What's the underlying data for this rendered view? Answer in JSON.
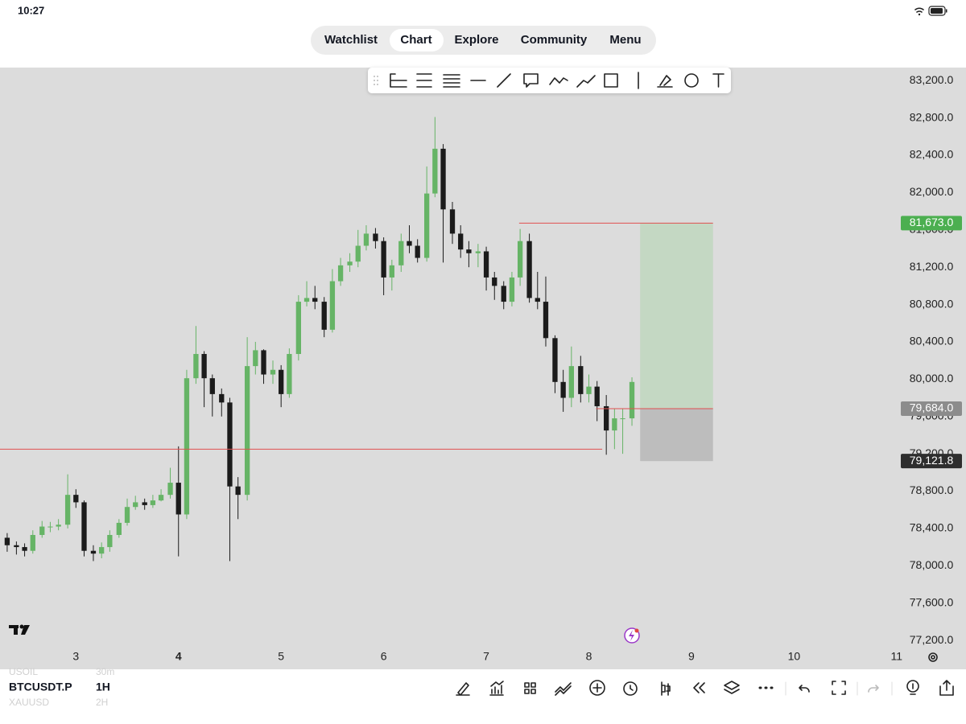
{
  "status_bar": {
    "time": "10:27"
  },
  "nav": {
    "tabs": [
      "Watchlist",
      "Chart",
      "Explore",
      "Community",
      "Menu"
    ]
  },
  "symbols": [
    {
      "symbol": "USOIL",
      "interval": "30m"
    },
    {
      "symbol": "BTCUSDT.P",
      "interval": "1H"
    },
    {
      "symbol": "XAUUSD",
      "interval": "2H"
    }
  ],
  "chart_data": {
    "type": "candlestick",
    "up_color": "#66b466",
    "down_color": "#1b1b1b",
    "x": [
      2.33,
      2.42,
      2.5,
      2.58,
      2.67,
      2.75,
      2.83,
      2.92,
      3,
      3.08,
      3.17,
      3.25,
      3.33,
      3.42,
      3.5,
      3.58,
      3.67,
      3.75,
      3.83,
      3.92,
      4,
      4.08,
      4.17,
      4.25,
      4.33,
      4.42,
      4.5,
      4.58,
      4.67,
      4.75,
      4.83,
      4.92,
      5,
      5.08,
      5.17,
      5.25,
      5.33,
      5.42,
      5.5,
      5.58,
      5.67,
      5.75,
      5.83,
      5.92,
      6,
      6.08,
      6.17,
      6.25,
      6.33,
      6.42,
      6.5,
      6.58,
      6.67,
      6.75,
      6.83,
      6.92,
      7,
      7.08,
      7.17,
      7.25,
      7.33,
      7.42,
      7.5,
      7.58,
      7.67,
      7.75,
      7.83,
      7.92,
      8,
      8.08,
      8.17,
      8.25,
      8.33,
      8.42
    ],
    "open": [
      78300,
      78220,
      78200,
      78160,
      78330,
      78420,
      78420,
      78440,
      78760,
      78680,
      78160,
      78130,
      78200,
      78330,
      78460,
      78630,
      78680,
      78650,
      78700,
      78760,
      78890,
      78550,
      80010,
      80270,
      80010,
      79840,
      79750,
      78850,
      78760,
      80140,
      80310,
      80050,
      80100,
      79840,
      80270,
      80830,
      80870,
      80830,
      80530,
      81050,
      81220,
      81260,
      81430,
      81560,
      81480,
      81090,
      81220,
      81480,
      81430,
      81300,
      81990,
      82470,
      81820,
      81560,
      81390,
      81350,
      81370,
      81090,
      81000,
      80830,
      81090,
      81480,
      80870,
      80830,
      80440,
      79970,
      79800,
      80140,
      79840,
      79920,
      79710,
      79450,
      79580,
      79580
    ],
    "high": [
      78350,
      78260,
      78240,
      78380,
      78480,
      78470,
      78500,
      78980,
      78820,
      78700,
      78220,
      78250,
      78380,
      78500,
      78720,
      78750,
      78720,
      78760,
      78820,
      79050,
      79280,
      80100,
      80570,
      80300,
      80050,
      79900,
      79800,
      78950,
      80450,
      80400,
      80320,
      80200,
      80150,
      80330,
      80900,
      81050,
      81000,
      80880,
      81180,
      81300,
      81350,
      81600,
      81650,
      81620,
      81520,
      81280,
      81560,
      81650,
      81500,
      82280,
      82810,
      82520,
      81900,
      81650,
      81480,
      81450,
      81420,
      81150,
      81050,
      81150,
      81610,
      81560,
      81150,
      81100,
      80470,
      80100,
      80350,
      80250,
      80050,
      79980,
      79830,
      79680,
      79680,
      80020
    ],
    "low": [
      78150,
      78120,
      78100,
      78130,
      78300,
      78360,
      78380,
      78400,
      78620,
      78100,
      78050,
      78080,
      78150,
      78300,
      78430,
      78600,
      78600,
      78620,
      78690,
      78720,
      78100,
      78500,
      79950,
      79700,
      79600,
      79600,
      78050,
      78500,
      78700,
      80050,
      79950,
      79950,
      79700,
      79800,
      80200,
      80780,
      80750,
      80450,
      80500,
      81000,
      81150,
      81200,
      81380,
      81400,
      80900,
      80950,
      81150,
      81350,
      81250,
      81260,
      81950,
      81250,
      81450,
      81300,
      81200,
      81200,
      80950,
      80850,
      80750,
      80780,
      81000,
      80820,
      80750,
      80350,
      79850,
      79650,
      79700,
      79750,
      79750,
      79550,
      79190,
      79250,
      79200,
      79500
    ],
    "close": [
      78220,
      78200,
      78160,
      78330,
      78420,
      78420,
      78440,
      78760,
      78680,
      78160,
      78130,
      78200,
      78330,
      78460,
      78630,
      78680,
      78650,
      78700,
      78760,
      78890,
      78550,
      80010,
      80270,
      80010,
      79840,
      79750,
      78850,
      78760,
      80140,
      80310,
      80050,
      80100,
      79840,
      80270,
      80830,
      80870,
      80830,
      80530,
      81050,
      81220,
      81260,
      81430,
      81560,
      81480,
      81090,
      81220,
      81480,
      81430,
      81300,
      81990,
      82470,
      81820,
      81560,
      81390,
      81350,
      81370,
      81090,
      81000,
      80830,
      81090,
      81480,
      80870,
      80830,
      80440,
      79970,
      79800,
      80140,
      79840,
      79920,
      79710,
      79450,
      79580,
      79580,
      79970
    ],
    "xlim": [
      2.26,
      10.97
    ],
    "ylim": [
      76890,
      83340
    ],
    "xticks": [
      3,
      4,
      5,
      6,
      7,
      8,
      9,
      10,
      11
    ],
    "yticks": [
      {
        "value": 77200,
        "label": "77,200.0"
      },
      {
        "value": 77600,
        "label": "77,600.0"
      },
      {
        "value": 78000,
        "label": "78,000.0"
      },
      {
        "value": 78400,
        "label": "78,400.0"
      },
      {
        "value": 78800,
        "label": "78,800.0"
      },
      {
        "value": 79200,
        "label": "79,200.0"
      },
      {
        "value": 79600,
        "label": "79,600.0"
      },
      {
        "value": 80000,
        "label": "80,000.0"
      },
      {
        "value": 80400,
        "label": "80,400.0"
      },
      {
        "value": 80800,
        "label": "80,800.0"
      },
      {
        "value": 81200,
        "label": "81,200.0"
      },
      {
        "value": 81600,
        "label": "81,600.0"
      },
      {
        "value": 82000,
        "label": "82,000.0"
      },
      {
        "value": 82400,
        "label": "82,400.0"
      },
      {
        "value": 82800,
        "label": "82,800.0"
      },
      {
        "value": 83200,
        "label": "83,200.0"
      }
    ],
    "horizontal_line": {
      "value": 79250,
      "x_end": 8.13,
      "color": "#e05050"
    },
    "position": {
      "x_start": 8.5,
      "x_end": 9.21,
      "target_line_start": 7.32,
      "entry_line_start": 8.07,
      "line_color": "#e05050",
      "profit_color": "#c4d8c3",
      "loss_color": "#bdbdbd",
      "target": {
        "value": 81673,
        "label": "81,673.0",
        "color": "#4caf50"
      },
      "entry": {
        "value": 79684,
        "label": "79,684.0",
        "color": "#8c8c8c"
      },
      "stop": {
        "value": 79121.8,
        "label": "79,121.8",
        "color": "#2e2e2e"
      }
    }
  }
}
